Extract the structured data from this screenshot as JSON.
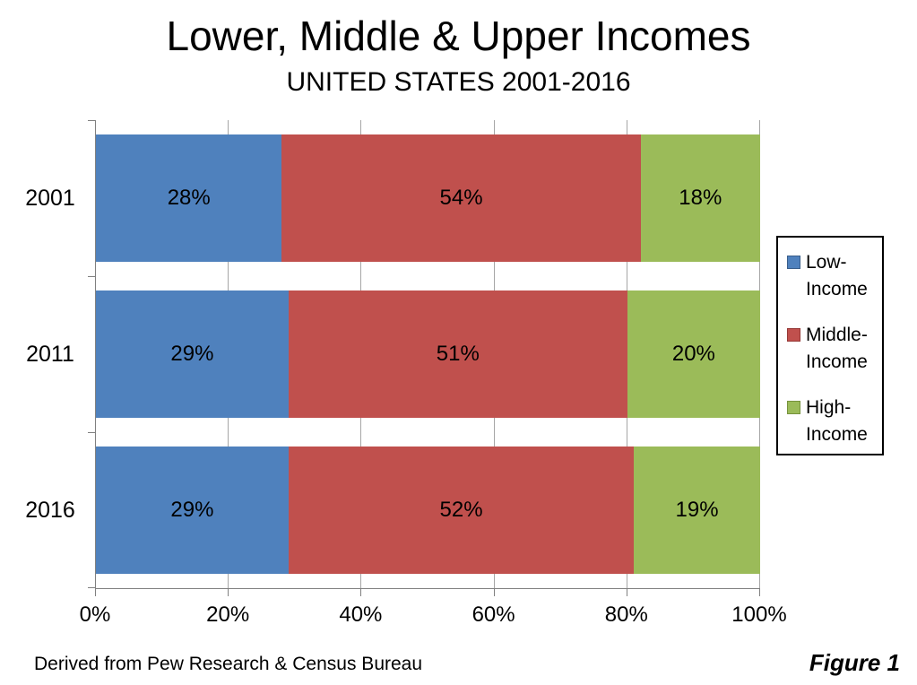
{
  "chart_data": {
    "type": "bar",
    "orientation": "horizontal",
    "stacked": true,
    "title": "Lower, Middle & Upper Incomes",
    "subtitle": "UNITED STATES 2001-2016",
    "categories": [
      "2001",
      "2011",
      "2016"
    ],
    "series": [
      {
        "name": "Low-Income",
        "legend_lines": [
          "Low-",
          "Income"
        ],
        "color": "#4F81BD",
        "swatch_border": "#385D8A",
        "values": [
          28,
          29,
          29
        ]
      },
      {
        "name": "Middle-Income",
        "legend_lines": [
          "Middle-",
          "Income"
        ],
        "color": "#C0504D",
        "swatch_border": "#953735",
        "values": [
          54,
          51,
          52
        ]
      },
      {
        "name": "High-Income",
        "legend_lines": [
          "High-",
          "Income"
        ],
        "color": "#9BBB59",
        "swatch_border": "#76923C",
        "values": [
          18,
          20,
          19
        ]
      }
    ],
    "value_label_suffix": "%",
    "x_axis": {
      "tick_values": [
        0,
        20,
        40,
        60,
        80,
        100
      ],
      "tick_labels": [
        "0%",
        "20%",
        "40%",
        "60%",
        "80%",
        "100%"
      ],
      "min": 0,
      "max": 100
    },
    "grid": "vertical",
    "legend_position": "right",
    "axis_color": "#808080",
    "gridline_color": "#a6a6a6",
    "label_color": "#000000"
  },
  "footer": {
    "source": "Derived from Pew Research & Census Bureau",
    "figure_label": "Figure 1"
  }
}
